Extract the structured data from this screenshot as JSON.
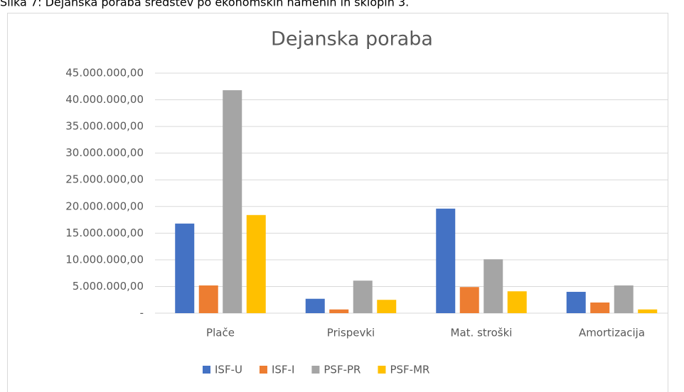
{
  "caption": "Slika 7: Dejanska poraba sredstev po ekonomskih namenih in sklopih 3.",
  "chart_data": {
    "type": "bar",
    "title": "Dejanska poraba",
    "categories": [
      "Plače",
      "Prispevki",
      "Mat. stroški",
      "Amortizacija"
    ],
    "series": [
      {
        "name": "ISF-U",
        "color": "#4472c4",
        "values": [
          16800000,
          2700000,
          19600000,
          4000000
        ]
      },
      {
        "name": "ISF-I",
        "color": "#ed7d31",
        "values": [
          5200000,
          700000,
          4900000,
          2000000
        ]
      },
      {
        "name": "PSF-PR",
        "color": "#a5a5a5",
        "values": [
          41800000,
          6100000,
          10100000,
          5200000
        ]
      },
      {
        "name": "PSF-MR",
        "color": "#ffc000",
        "values": [
          18400000,
          2500000,
          4100000,
          700000
        ]
      }
    ],
    "ylim": [
      0,
      45000000
    ],
    "yticks": [
      {
        "value": 0,
        "label": "-"
      },
      {
        "value": 5000000,
        "label": "5.000.000,00"
      },
      {
        "value": 10000000,
        "label": "10.000.000,00"
      },
      {
        "value": 15000000,
        "label": "15.000.000,00"
      },
      {
        "value": 20000000,
        "label": "20.000.000,00"
      },
      {
        "value": 25000000,
        "label": "25.000.000,00"
      },
      {
        "value": 30000000,
        "label": "30.000.000,00"
      },
      {
        "value": 35000000,
        "label": "35.000.000,00"
      },
      {
        "value": 40000000,
        "label": "40.000.000,00"
      },
      {
        "value": 45000000,
        "label": "45.000.000,00"
      }
    ],
    "grid": true,
    "legend": "bottom"
  }
}
